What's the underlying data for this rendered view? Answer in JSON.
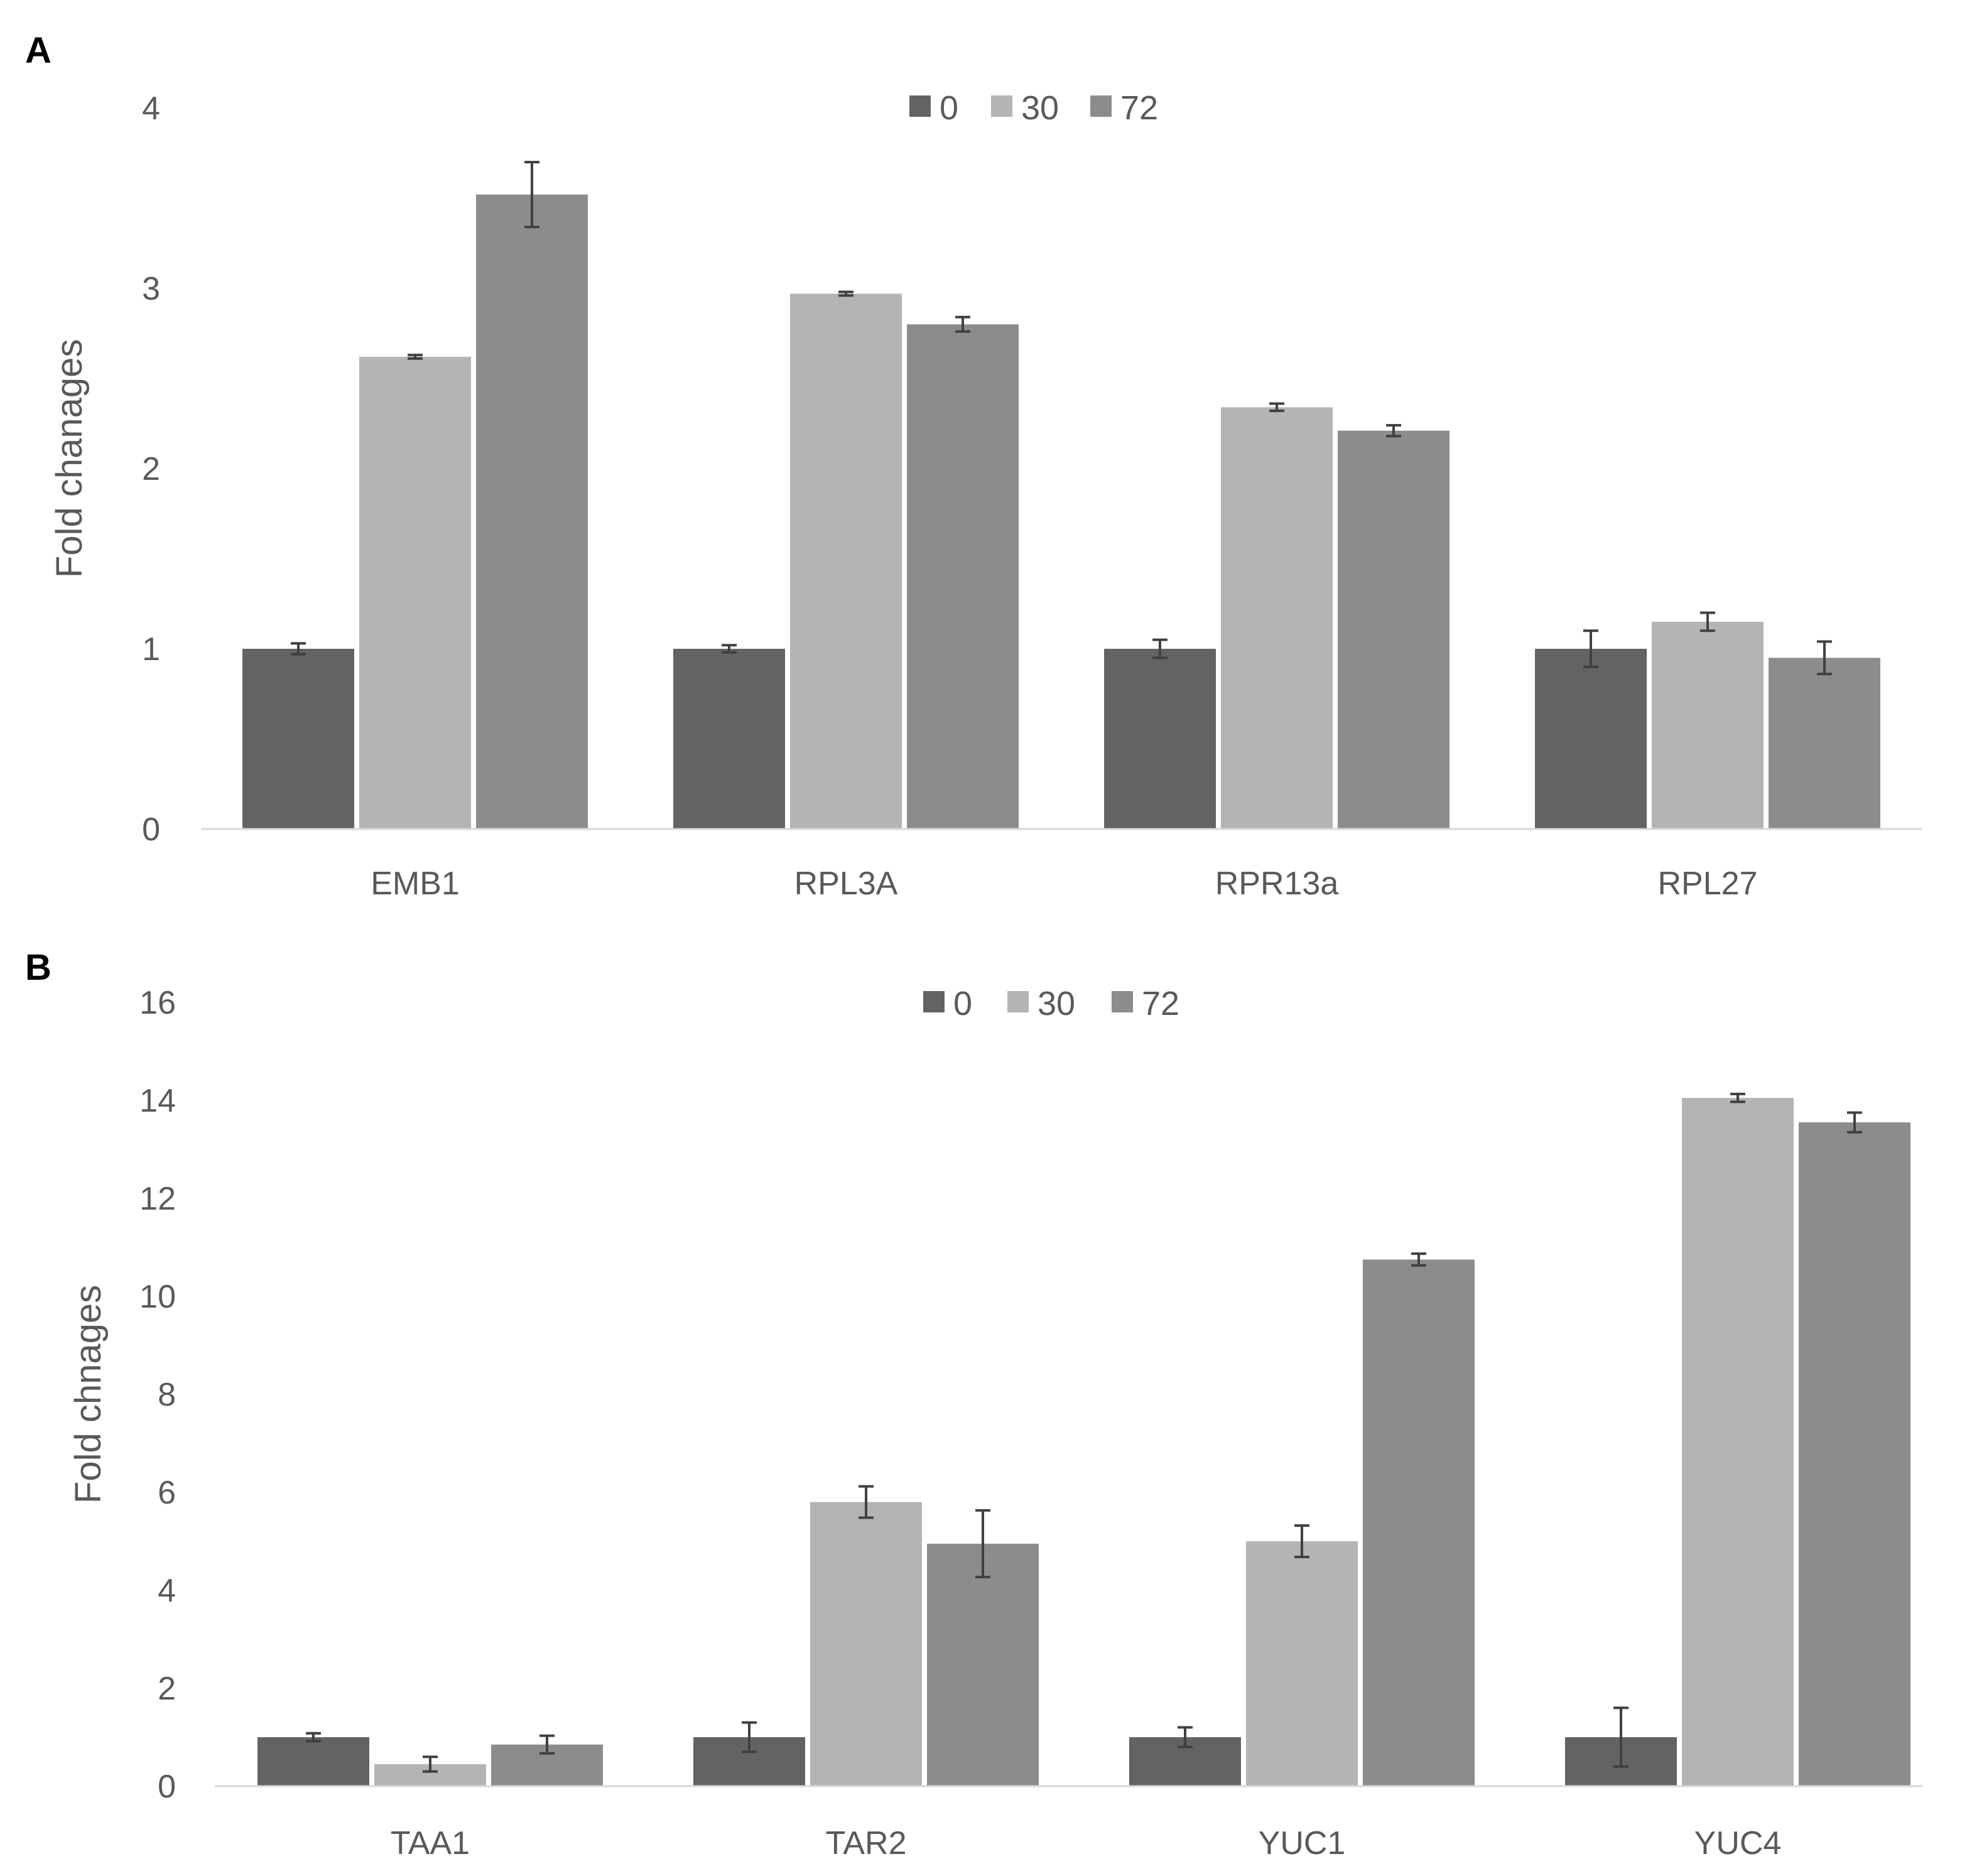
{
  "chart_data": [
    {
      "panel": "A",
      "type": "bar",
      "ylabel": "Fold chanages",
      "xlabel": "",
      "ylim": [
        0,
        4
      ],
      "yticks": [
        "0",
        "1",
        "2",
        "3",
        "4"
      ],
      "categories": [
        "EMB1",
        "RPL3A",
        "RPR13a",
        "RPL27"
      ],
      "legend": {
        "position": "top-center"
      },
      "series": [
        {
          "name": "0",
          "color": "#636363",
          "values": [
            1.0,
            1.0,
            1.0,
            1.0
          ],
          "errors": [
            0.03,
            0.02,
            0.05,
            0.1
          ]
        },
        {
          "name": "30",
          "color": "#b4b4b4",
          "values": [
            2.62,
            2.97,
            2.34,
            1.15
          ],
          "errors": [
            0.01,
            0.01,
            0.02,
            0.05
          ]
        },
        {
          "name": "72",
          "color": "#8c8c8c",
          "values": [
            3.52,
            2.8,
            2.21,
            0.95
          ],
          "errors": [
            0.18,
            0.04,
            0.03,
            0.09
          ]
        }
      ]
    },
    {
      "panel": "B",
      "type": "bar",
      "ylabel": "Fold chnages",
      "xlabel": "",
      "ylim": [
        0,
        16
      ],
      "yticks": [
        "0",
        "2",
        "4",
        "6",
        "8",
        "10",
        "12",
        "14",
        "16"
      ],
      "categories": [
        "TAA1",
        "TAR2",
        "YUC1",
        "YUC4"
      ],
      "legend": {
        "position": "top-center"
      },
      "series": [
        {
          "name": "0",
          "color": "#636363",
          "values": [
            1.0,
            1.0,
            1.0,
            1.0
          ],
          "errors": [
            0.08,
            0.3,
            0.2,
            0.6
          ]
        },
        {
          "name": "30",
          "color": "#b4b4b4",
          "values": [
            0.45,
            5.8,
            5.0,
            14.05
          ],
          "errors": [
            0.15,
            0.32,
            0.32,
            0.08
          ]
        },
        {
          "name": "72",
          "color": "#8c8c8c",
          "values": [
            0.85,
            4.95,
            10.75,
            13.55
          ],
          "errors": [
            0.18,
            0.68,
            0.12,
            0.2
          ]
        }
      ]
    }
  ]
}
